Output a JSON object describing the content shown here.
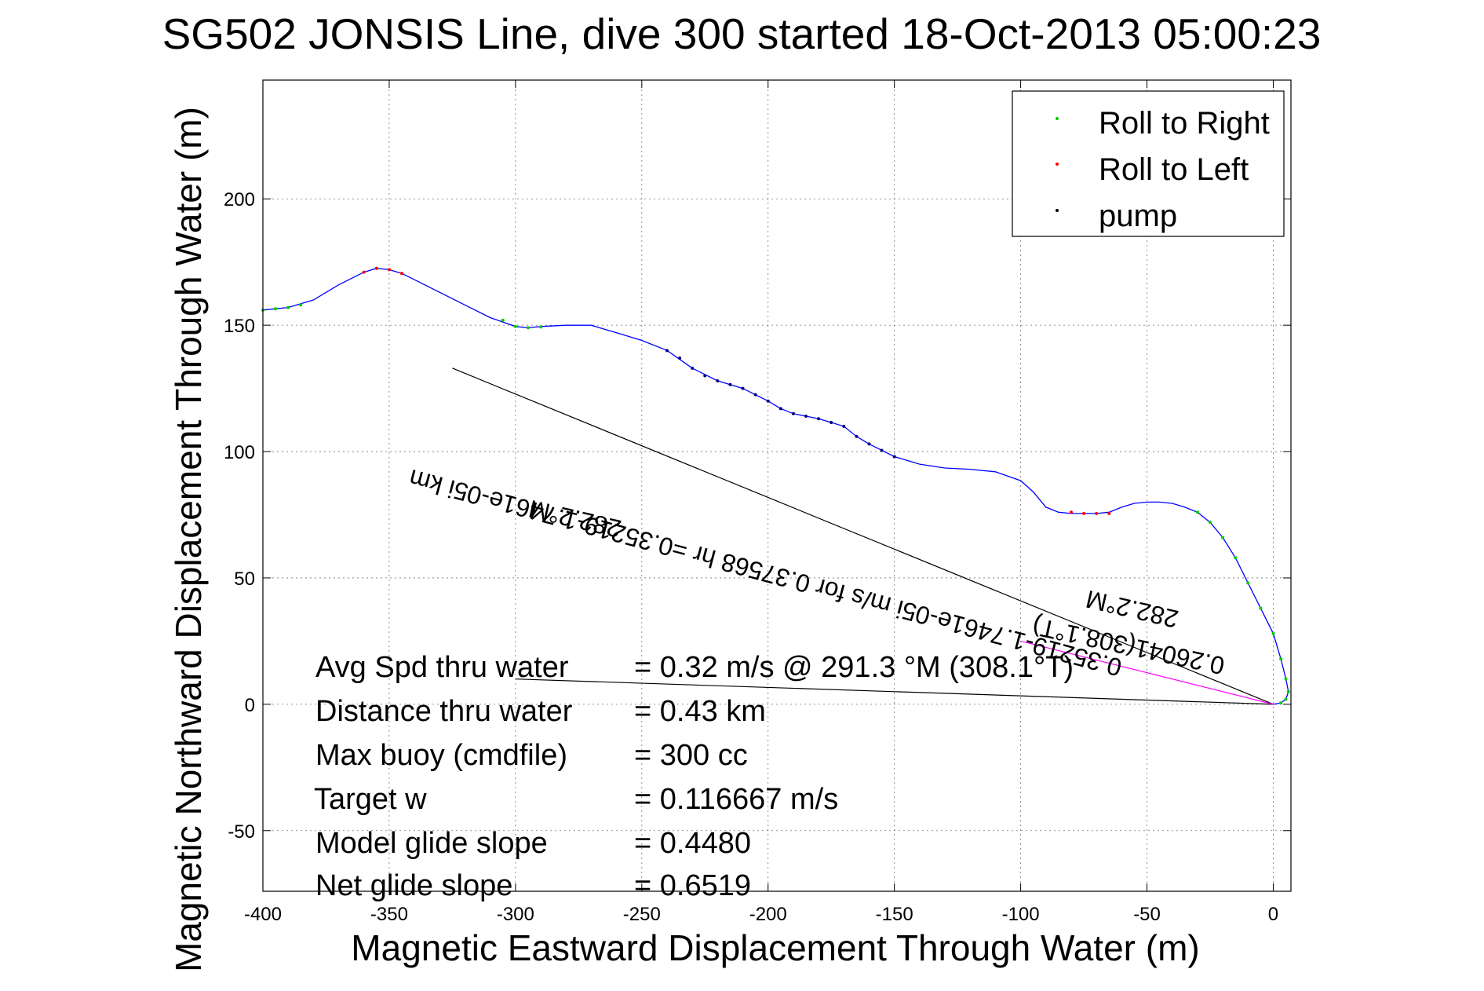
{
  "chart_data": {
    "type": "line",
    "title": "SG502 JONSIS Line, dive 300 started 18-Oct-2013 05:00:23",
    "xlabel": "Magnetic Eastward Displacement Through Water (m)",
    "ylabel": "Magnetic Northward Displacement Through Water (m)",
    "xlim": [
      -400,
      7
    ],
    "ylim": [
      -74,
      247
    ],
    "xticks": [
      -400,
      -350,
      -300,
      -250,
      -200,
      -150,
      -100,
      -50,
      0
    ],
    "yticks": [
      -50,
      0,
      50,
      100,
      150,
      200
    ],
    "grid": true,
    "legend_position": "top-right",
    "colors": {
      "track": "#0000ff",
      "roll_right": "#00cc00",
      "roll_left": "#ff0000",
      "pump": "#000080",
      "model_line": "#000000",
      "current_line": "#ff00ff"
    },
    "legend": [
      {
        "label": "Roll to Right",
        "color": "#00cc00"
      },
      {
        "label": "Roll to Left",
        "color": "#ff0000"
      },
      {
        "label": "pump",
        "color": "#000000"
      }
    ],
    "track": {
      "x": [
        -400,
        -390,
        -380,
        -370,
        -360,
        -355,
        -350,
        -345,
        -340,
        -330,
        -320,
        -310,
        -300,
        -295,
        -290,
        -280,
        -270,
        -260,
        -250,
        -240,
        -230,
        -220,
        -210,
        -200,
        -195,
        -190,
        -185,
        -180,
        -175,
        -170,
        -165,
        -160,
        -150,
        -140,
        -130,
        -120,
        -110,
        -100,
        -95,
        -90,
        -85,
        -80,
        -75,
        -70,
        -65,
        -60,
        -55,
        -50,
        -45,
        -40,
        -35,
        -30,
        -25,
        -20,
        -15,
        -10,
        -5,
        0,
        3,
        5,
        6,
        5,
        3,
        0
      ],
      "y": [
        156,
        157,
        160,
        166,
        171,
        172.5,
        172,
        170.5,
        168,
        163,
        158,
        153,
        149.5,
        149,
        149.5,
        150,
        150,
        147,
        144,
        140,
        133,
        128,
        125,
        120,
        117,
        115,
        114,
        113,
        111.5,
        110,
        106,
        103,
        98,
        95,
        93.5,
        93,
        92,
        88.5,
        84,
        78,
        76,
        75.5,
        75.5,
        75.5,
        76,
        78,
        79.5,
        80,
        80,
        79.5,
        78,
        76,
        72,
        66,
        58,
        48,
        38,
        28,
        18,
        10,
        5,
        2,
        0.5,
        0
      ]
    },
    "roll_right": {
      "x": [
        -400,
        -395,
        -390,
        -385,
        -305,
        -300,
        -295,
        -290,
        -30,
        -25,
        -20,
        -15,
        -10,
        -5,
        0,
        3,
        5,
        6,
        5,
        3
      ],
      "y": [
        156,
        156.5,
        157,
        158,
        152,
        149.5,
        149,
        149.3,
        76,
        72,
        66,
        58,
        48,
        38,
        28,
        18,
        10,
        5,
        2,
        0.5
      ]
    },
    "roll_left": {
      "x": [
        -360,
        -355,
        -350,
        -345,
        -80,
        -75,
        -70,
        -65
      ],
      "y": [
        171,
        172.5,
        172,
        170.5,
        76,
        75.5,
        75.5,
        75.5
      ]
    },
    "pump": {
      "x": [
        -240,
        -235,
        -230,
        -225,
        -220,
        -215,
        -210,
        -205,
        -200,
        -195,
        -190,
        -185,
        -180,
        -175,
        -170,
        -165,
        -160,
        -155,
        -150
      ],
      "y": [
        140,
        137,
        133,
        130,
        128,
        126.5,
        125,
        122.5,
        120,
        117,
        115,
        114,
        113,
        111.5,
        110,
        106,
        103,
        100.5,
        98
      ]
    },
    "model_line": {
      "x": [
        0,
        -325
      ],
      "y": [
        0,
        133
      ]
    },
    "current_line": {
      "x": [
        0,
        -300
      ],
      "y": [
        0,
        10
      ]
    },
    "annotations": [
      {
        "text": "0.26041(308.1°T)",
        "x": -92,
        "y": 20,
        "angle": 180,
        "color": "#000000"
      },
      {
        "text": "282.2°M",
        "x": -90,
        "y": 28,
        "angle": 193,
        "color": "#000000"
      },
      {
        "text": "282.2°M",
        "x": -278,
        "y": 73,
        "angle": 193,
        "color": "#000000"
      },
      {
        "text": "0.35219-1.7461e-05i km",
        "x": -95,
        "y": 25,
        "angle": 195,
        "color": "#000000"
      },
      {
        "text": "0.35219-1.7461e-05i m/s for 0.37568 hr =0.35219-1.7461e-05i km",
        "x": -100,
        "y": 25,
        "angle": 195,
        "color": "#000000"
      }
    ],
    "stats": [
      {
        "label": "Avg Spd thru water",
        "value": "=  0.32 m/s @ 291.3 °M (308.1°T)"
      },
      {
        "label": "Distance thru water",
        "value": "=  0.43 km"
      },
      {
        "label": "Max buoy (cmdfile)",
        "value": "= 300 cc"
      },
      {
        "label": "Target w",
        "value": "= 0.116667 m/s"
      },
      {
        "label": "Model glide slope",
        "value": "= 0.4480"
      },
      {
        "label": "Net glide slope",
        "value": "= 0.6519"
      }
    ]
  }
}
